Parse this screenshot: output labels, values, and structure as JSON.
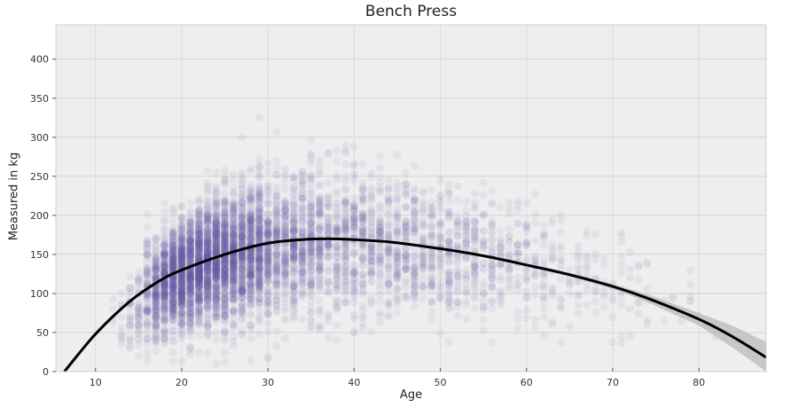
{
  "chart_data": {
    "type": "scatter",
    "title": "Bench Press",
    "xlabel": "Age",
    "ylabel": "Measured in kg",
    "xlim": [
      5.4,
      87.8
    ],
    "ylim": [
      0,
      444
    ],
    "xticks": [
      10,
      20,
      30,
      40,
      50,
      60,
      70,
      80
    ],
    "yticks": [
      0,
      50,
      100,
      150,
      200,
      250,
      300,
      350,
      400
    ],
    "grid": true,
    "legend": null,
    "colors": {
      "background": "#eeeeee",
      "grid": "#cbcbcb",
      "frame": "#d0d0d0",
      "points": "#6b5aa6",
      "fit_line": "#000000",
      "confidence_band": "#bdbdbd"
    },
    "scatter": {
      "description": "Thousands of semi-transparent points; dense cluster at ages 15-30 around 100-200 kg, sparse spread to age ~80",
      "point_alpha": 0.08,
      "approx_density_by_age": [
        {
          "age": 12,
          "mean": 70,
          "sd": 25,
          "n": 40
        },
        {
          "age": 14,
          "mean": 80,
          "sd": 25,
          "n": 120
        },
        {
          "age": 16,
          "mean": 105,
          "sd": 30,
          "n": 500
        },
        {
          "age": 18,
          "mean": 120,
          "sd": 32,
          "n": 900
        },
        {
          "age": 20,
          "mean": 130,
          "sd": 35,
          "n": 1000
        },
        {
          "age": 22,
          "mean": 138,
          "sd": 38,
          "n": 1000
        },
        {
          "age": 24,
          "mean": 145,
          "sd": 40,
          "n": 900
        },
        {
          "age": 26,
          "mean": 150,
          "sd": 42,
          "n": 800
        },
        {
          "age": 28,
          "mean": 155,
          "sd": 45,
          "n": 700
        },
        {
          "age": 30,
          "mean": 158,
          "sd": 45,
          "n": 600
        },
        {
          "age": 33,
          "mean": 162,
          "sd": 45,
          "n": 550
        },
        {
          "age": 36,
          "mean": 165,
          "sd": 45,
          "n": 500
        },
        {
          "age": 40,
          "mean": 165,
          "sd": 45,
          "n": 450
        },
        {
          "age": 44,
          "mean": 160,
          "sd": 42,
          "n": 380
        },
        {
          "age": 48,
          "mean": 155,
          "sd": 40,
          "n": 320
        },
        {
          "age": 52,
          "mean": 148,
          "sd": 38,
          "n": 250
        },
        {
          "age": 56,
          "mean": 140,
          "sd": 36,
          "n": 180
        },
        {
          "age": 60,
          "mean": 130,
          "sd": 35,
          "n": 120
        },
        {
          "age": 64,
          "mean": 120,
          "sd": 32,
          "n": 80
        },
        {
          "age": 68,
          "mean": 110,
          "sd": 30,
          "n": 50
        },
        {
          "age": 72,
          "mean": 100,
          "sd": 28,
          "n": 30
        },
        {
          "age": 76,
          "mean": 90,
          "sd": 25,
          "n": 15
        },
        {
          "age": 80,
          "mean": 80,
          "sd": 25,
          "n": 6
        }
      ]
    },
    "fit_curve": {
      "type": "polynomial regression",
      "x": [
        6.4,
        10,
        14,
        17.4,
        20,
        25,
        29.8,
        34,
        37,
        40,
        44,
        48.3,
        52,
        56,
        60.6,
        65,
        70,
        74,
        80,
        84,
        87.8
      ],
      "y": [
        0,
        48,
        90,
        116,
        130,
        150,
        164,
        169,
        170,
        169,
        166,
        160,
        154,
        146,
        135,
        124,
        109,
        94,
        67,
        44,
        18
      ],
      "ci_halfwidth": [
        4,
        2,
        1.5,
        1,
        1,
        1,
        1,
        1,
        1,
        1,
        1,
        1,
        1,
        1.5,
        2,
        2.5,
        3,
        5,
        8,
        14,
        20
      ]
    }
  }
}
